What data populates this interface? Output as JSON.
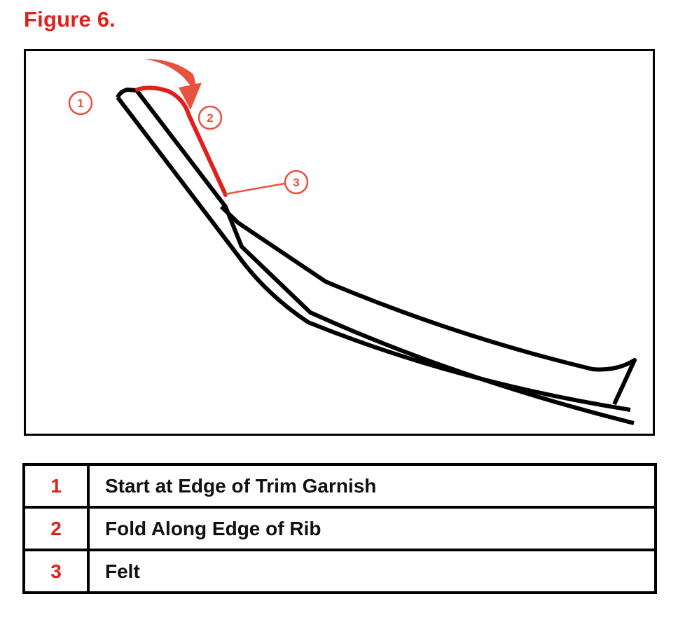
{
  "figure": {
    "title": "Figure 6."
  },
  "diagram": {
    "callouts": [
      "1",
      "2",
      "3"
    ],
    "colors": {
      "outline": "#000000",
      "highlight": "#e0201b",
      "callout": "#e7523f"
    }
  },
  "legend": {
    "rows": [
      {
        "number": "1",
        "description": "Start at Edge of Trim Garnish"
      },
      {
        "number": "2",
        "description": "Fold Along Edge of Rib"
      },
      {
        "number": "3",
        "description": "Felt"
      }
    ]
  }
}
